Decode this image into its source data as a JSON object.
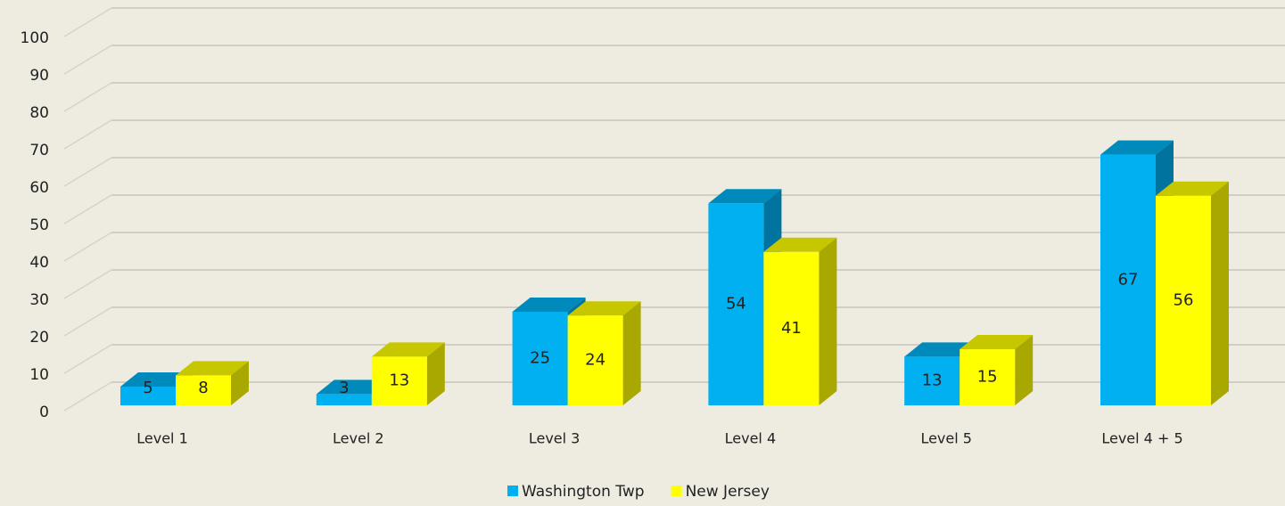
{
  "chart_data": {
    "type": "bar3d",
    "categories": [
      "Level 1",
      "Level 2",
      "Level 3",
      "Level 4",
      "Level 5",
      "Level 4 + 5"
    ],
    "series": [
      {
        "name": "Washington Twp",
        "color": "#00b0f0",
        "values": [
          5,
          3,
          25,
          54,
          13,
          67
        ]
      },
      {
        "name": "New Jersey",
        "color": "#ffff00",
        "values": [
          8,
          13,
          24,
          41,
          15,
          56
        ]
      }
    ],
    "ylim": [
      0,
      100
    ],
    "yticks": [
      0,
      10,
      20,
      30,
      40,
      50,
      60,
      70,
      80,
      90,
      100
    ],
    "grid": true,
    "legend": "bottom"
  }
}
